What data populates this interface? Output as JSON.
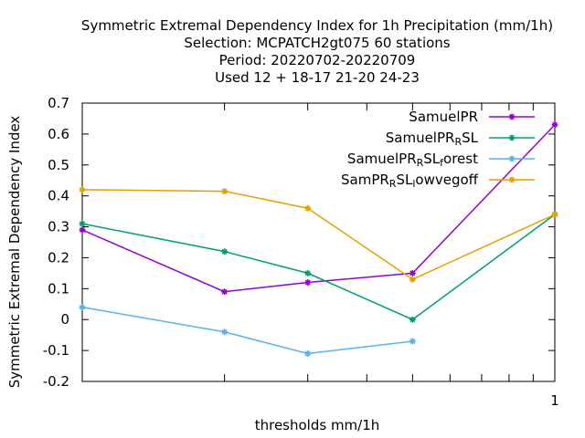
{
  "chart_data": {
    "type": "line",
    "title_lines": [
      "Symmetric Extremal Dependency Index  for 1h Precipitation (mm/1h)",
      "Selection: MCPATCH2gt075     60 stations",
      "Period: 20220702-20220709",
      "Used  12 + 18-17 21-20 24-23"
    ],
    "xlabel": "thresholds mm/1h",
    "ylabel": "Symmetric Extremal Dependency Index",
    "x_scale": "log",
    "xlim": [
      0.1,
      1
    ],
    "ylim": [
      -0.2,
      0.7
    ],
    "x_tick_labels": [
      {
        "x": 1,
        "label": "1"
      }
    ],
    "y_ticks": [
      -0.2,
      -0.1,
      0,
      0.1,
      0.2,
      0.3,
      0.4,
      0.5,
      0.6,
      0.7
    ],
    "y_tick_labels": [
      "-0.2",
      "-0.1",
      "0",
      "0.1",
      "0.2",
      "0.3",
      "0.4",
      "0.5",
      "0.6",
      "0.7"
    ],
    "legend_position": "top-right",
    "grid": false,
    "series": [
      {
        "name": "SamuelPR",
        "name_parts": [
          {
            "t": "SamuelPR"
          }
        ],
        "color": "#9400d3",
        "points": [
          [
            0.1,
            0.29
          ],
          [
            0.2,
            0.09
          ],
          [
            0.3,
            0.12
          ],
          [
            0.5,
            0.15
          ],
          [
            1,
            0.63
          ]
        ]
      },
      {
        "name": "SamuelPR_RSL",
        "name_parts": [
          {
            "t": "SamuelPR"
          },
          {
            "t": "R",
            "sub": true
          },
          {
            "t": "SL"
          }
        ],
        "color": "#009e73",
        "points": [
          [
            0.1,
            0.31
          ],
          [
            0.2,
            0.22
          ],
          [
            0.3,
            0.15
          ],
          [
            0.5,
            0.0
          ],
          [
            1,
            0.34
          ]
        ]
      },
      {
        "name": "SamuelPR_RSL_forest",
        "name_parts": [
          {
            "t": "SamuelPR"
          },
          {
            "t": "R",
            "sub": true
          },
          {
            "t": "SL"
          },
          {
            "t": "f",
            "sub": true
          },
          {
            "t": "orest"
          }
        ],
        "color": "#56b4e9",
        "points": [
          [
            0.1,
            0.04
          ],
          [
            0.2,
            -0.04
          ],
          [
            0.3,
            -0.11
          ],
          [
            0.5,
            -0.07
          ]
        ]
      },
      {
        "name": "SamPR_RSL_lowvegoff",
        "name_parts": [
          {
            "t": "SamPR"
          },
          {
            "t": "R",
            "sub": true
          },
          {
            "t": "SL"
          },
          {
            "t": "l",
            "sub": true
          },
          {
            "t": "owvegoff"
          }
        ],
        "color": "#e69f00",
        "points": [
          [
            0.1,
            0.42
          ],
          [
            0.2,
            0.415
          ],
          [
            0.3,
            0.36
          ],
          [
            0.5,
            0.13
          ],
          [
            1,
            0.34
          ]
        ]
      }
    ]
  }
}
